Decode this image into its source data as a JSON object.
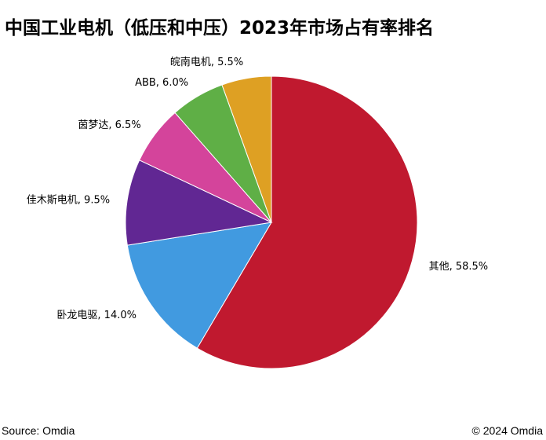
{
  "title": "中国工业电机（低压和中压）2023年市场占有率排名",
  "footer": {
    "source": "Source: Omdia",
    "copyright": "© 2024 Omdia"
  },
  "chart_data": {
    "type": "pie",
    "title": "中国工业电机（低压和中压）2023年市场占有率排名",
    "start": "12 o'clock",
    "direction": "clockwise",
    "slices": [
      {
        "name": "其他",
        "value": 58.5,
        "label": "其他, 58.5%",
        "color": "#C0192F"
      },
      {
        "name": "卧龙电驱",
        "value": 14.0,
        "label": "卧龙电驱, 14.0%",
        "color": "#419AE0"
      },
      {
        "name": "佳木斯电机",
        "value": 9.5,
        "label": "佳木斯电机, 9.5%",
        "color": "#612793"
      },
      {
        "name": "茵梦达",
        "value": 6.5,
        "label": "茵梦达, 6.5%",
        "color": "#D4449B"
      },
      {
        "name": "ABB",
        "value": 6.0,
        "label": "ABB, 6.0%",
        "color": "#5FAF46"
      },
      {
        "name": "皖南电机",
        "value": 5.5,
        "label": "皖南电机, 5.5%",
        "color": "#DEA023"
      }
    ]
  }
}
